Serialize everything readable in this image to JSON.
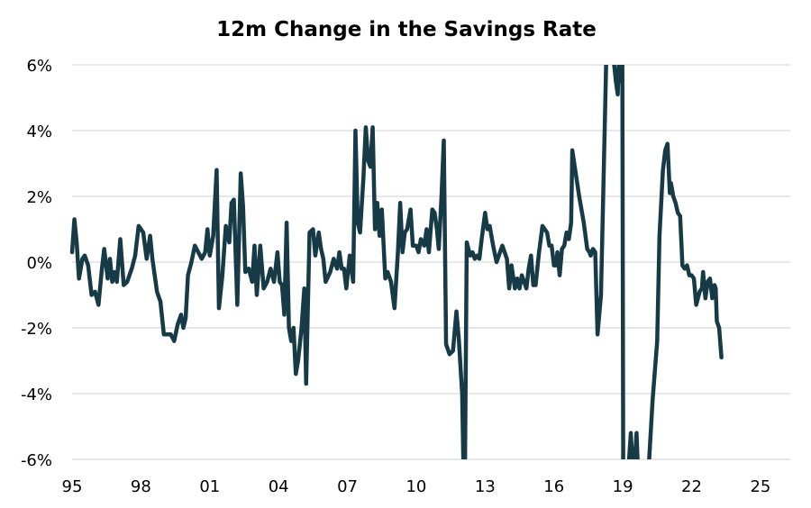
{
  "colors": {
    "line": "#173a47",
    "grid": "#d9d9d9",
    "background": "#ffffff"
  },
  "chart_data": {
    "type": "line",
    "title": "12m Change in the Savings Rate",
    "xlabel": "",
    "ylabel": "",
    "xlim": [
      1995.0,
      2026.3
    ],
    "ylim": [
      -6,
      6
    ],
    "y_tick_values": [
      6,
      4,
      2,
      0,
      -2,
      -4,
      -6
    ],
    "y_tick_labels": [
      "6%",
      "4%",
      "2%",
      "0%",
      "-2%",
      "-4%",
      "-6%"
    ],
    "x_tick_values": [
      1995,
      1998,
      2001,
      2004,
      2007,
      2010,
      2013,
      2016,
      2019,
      2022,
      2025
    ],
    "x_tick_labels": [
      "95",
      "98",
      "01",
      "04",
      "07",
      "10",
      "13",
      "16",
      "19",
      "22",
      "25"
    ],
    "grid": true,
    "legend": "none",
    "series": [
      {
        "color": "#173a47",
        "points": [
          [
            1995.0,
            0.3
          ],
          [
            1995.1,
            1.3
          ],
          [
            1995.2,
            0.6
          ],
          [
            1995.3,
            -0.5
          ],
          [
            1995.45,
            0.1
          ],
          [
            1995.55,
            0.2
          ],
          [
            1995.7,
            -0.1
          ],
          [
            1995.85,
            -1.0
          ],
          [
            1996.0,
            -0.9
          ],
          [
            1996.15,
            -1.3
          ],
          [
            1996.3,
            -0.2
          ],
          [
            1996.4,
            0.4
          ],
          [
            1996.55,
            -0.5
          ],
          [
            1996.65,
            0.1
          ],
          [
            1996.75,
            -0.6
          ],
          [
            1996.85,
            -0.3
          ],
          [
            1996.95,
            -0.6
          ],
          [
            1997.1,
            0.7
          ],
          [
            1997.25,
            -0.7
          ],
          [
            1997.4,
            -0.6
          ],
          [
            1997.6,
            -0.2
          ],
          [
            1997.75,
            0.2
          ],
          [
            1997.9,
            1.1
          ],
          [
            1998.1,
            0.9
          ],
          [
            1998.25,
            0.1
          ],
          [
            1998.4,
            0.8
          ],
          [
            1998.5,
            0.1
          ],
          [
            1998.7,
            -0.9
          ],
          [
            1998.85,
            -1.2
          ],
          [
            1999.0,
            -2.2
          ],
          [
            1999.3,
            -2.2
          ],
          [
            1999.45,
            -2.4
          ],
          [
            1999.6,
            -1.9
          ],
          [
            1999.75,
            -1.6
          ],
          [
            1999.85,
            -2.0
          ],
          [
            1999.95,
            -1.7
          ],
          [
            2000.05,
            -0.4
          ],
          [
            2000.2,
            0.0
          ],
          [
            2000.35,
            0.5
          ],
          [
            2000.5,
            0.3
          ],
          [
            2000.65,
            0.1
          ],
          [
            2000.8,
            0.3
          ],
          [
            2000.9,
            1.0
          ],
          [
            2001.0,
            0.2
          ],
          [
            2001.15,
            0.8
          ],
          [
            2001.3,
            2.8
          ],
          [
            2001.4,
            -1.4
          ],
          [
            2001.55,
            -0.4
          ],
          [
            2001.7,
            1.1
          ],
          [
            2001.85,
            0.6
          ],
          [
            2001.95,
            1.8
          ],
          [
            2002.05,
            1.9
          ],
          [
            2002.2,
            -1.3
          ],
          [
            2002.35,
            2.7
          ],
          [
            2002.45,
            1.7
          ],
          [
            2002.55,
            -0.3
          ],
          [
            2002.7,
            -0.2
          ],
          [
            2002.85,
            -0.6
          ],
          [
            2002.95,
            0.5
          ],
          [
            2003.05,
            -1.0
          ],
          [
            2003.2,
            0.5
          ],
          [
            2003.35,
            -0.8
          ],
          [
            2003.5,
            -0.6
          ],
          [
            2003.65,
            -0.2
          ],
          [
            2003.8,
            -0.6
          ],
          [
            2003.95,
            0.3
          ],
          [
            2004.05,
            -0.6
          ],
          [
            2004.15,
            -0.7
          ],
          [
            2004.25,
            -1.6
          ],
          [
            2004.35,
            1.2
          ],
          [
            2004.45,
            -2.0
          ],
          [
            2004.55,
            -2.4
          ],
          [
            2004.65,
            -2.0
          ],
          [
            2004.75,
            -3.4
          ],
          [
            2004.85,
            -3.0
          ],
          [
            2005.0,
            -2.0
          ],
          [
            2005.12,
            -0.8
          ],
          [
            2005.2,
            -3.7
          ],
          [
            2005.35,
            0.9
          ],
          [
            2005.5,
            1.0
          ],
          [
            2005.6,
            0.2
          ],
          [
            2005.75,
            0.9
          ],
          [
            2005.85,
            0.4
          ],
          [
            2005.95,
            0.1
          ],
          [
            2006.05,
            -0.6
          ],
          [
            2006.25,
            -0.3
          ],
          [
            2006.4,
            0.1
          ],
          [
            2006.55,
            -0.2
          ],
          [
            2006.65,
            0.3
          ],
          [
            2006.75,
            -0.2
          ],
          [
            2006.85,
            -0.2
          ],
          [
            2006.95,
            -0.8
          ],
          [
            2007.1,
            0.2
          ],
          [
            2007.25,
            -0.6
          ],
          [
            2007.35,
            4.0
          ],
          [
            2007.45,
            1.2
          ],
          [
            2007.55,
            0.9
          ],
          [
            2007.7,
            2.6
          ],
          [
            2007.8,
            4.1
          ],
          [
            2007.9,
            3.1
          ],
          [
            2008.0,
            2.9
          ],
          [
            2008.1,
            4.1
          ],
          [
            2008.2,
            1.0
          ],
          [
            2008.3,
            1.8
          ],
          [
            2008.4,
            0.8
          ],
          [
            2008.5,
            1.6
          ],
          [
            2008.65,
            -0.5
          ],
          [
            2008.75,
            -0.3
          ],
          [
            2008.9,
            -0.6
          ],
          [
            2009.05,
            -1.4
          ],
          [
            2009.2,
            0.3
          ],
          [
            2009.3,
            1.8
          ],
          [
            2009.4,
            0.3
          ],
          [
            2009.5,
            0.9
          ],
          [
            2009.6,
            1.0
          ],
          [
            2009.75,
            1.6
          ],
          [
            2009.85,
            0.5
          ],
          [
            2010.0,
            0.5
          ],
          [
            2010.1,
            0.3
          ],
          [
            2010.2,
            0.7
          ],
          [
            2010.35,
            0.5
          ],
          [
            2010.45,
            1.0
          ],
          [
            2010.55,
            0.3
          ],
          [
            2010.7,
            1.6
          ],
          [
            2010.8,
            1.5
          ],
          [
            2010.9,
            1.0
          ],
          [
            2010.98,
            0.4
          ],
          [
            2011.1,
            2.0
          ],
          [
            2011.2,
            3.7
          ],
          [
            2011.3,
            -2.5
          ],
          [
            2011.45,
            -2.8
          ],
          [
            2011.6,
            -2.7
          ],
          [
            2011.75,
            -1.5
          ],
          [
            2011.85,
            -2.3
          ],
          [
            2012.0,
            -4.0
          ],
          [
            2012.05,
            -6.0
          ],
          [
            2012.12,
            -6.5
          ],
          [
            2012.2,
            0.6
          ],
          [
            2012.35,
            0.2
          ],
          [
            2012.45,
            0.3
          ],
          [
            2012.55,
            0.1
          ],
          [
            2012.65,
            0.2
          ],
          [
            2012.75,
            0.1
          ],
          [
            2012.85,
            0.7
          ],
          [
            2013.0,
            1.5
          ],
          [
            2013.1,
            1.0
          ],
          [
            2013.2,
            1.1
          ],
          [
            2013.35,
            0.5
          ],
          [
            2013.5,
            0.0
          ],
          [
            2013.65,
            0.3
          ],
          [
            2013.75,
            0.5
          ],
          [
            2013.85,
            0.3
          ],
          [
            2013.95,
            0.1
          ],
          [
            2014.05,
            -0.8
          ],
          [
            2014.15,
            -0.1
          ],
          [
            2014.3,
            -0.8
          ],
          [
            2014.4,
            -0.5
          ],
          [
            2014.5,
            -0.8
          ],
          [
            2014.6,
            -0.4
          ],
          [
            2014.7,
            -0.6
          ],
          [
            2014.8,
            -0.8
          ],
          [
            2014.9,
            -0.2
          ],
          [
            2015.0,
            0.2
          ],
          [
            2015.1,
            -0.7
          ],
          [
            2015.2,
            -0.7
          ],
          [
            2015.35,
            0.3
          ],
          [
            2015.5,
            1.1
          ],
          [
            2015.6,
            1.0
          ],
          [
            2015.7,
            0.9
          ],
          [
            2015.8,
            0.5
          ],
          [
            2015.9,
            0.5
          ],
          [
            2016.0,
            -0.1
          ],
          [
            2016.1,
            -0.1
          ],
          [
            2016.15,
            0.3
          ],
          [
            2016.25,
            -0.4
          ],
          [
            2016.35,
            0.4
          ],
          [
            2016.45,
            0.5
          ],
          [
            2016.55,
            0.9
          ],
          [
            2016.65,
            0.7
          ],
          [
            2016.75,
            1.2
          ],
          [
            2016.8,
            3.4
          ],
          [
            2016.95,
            2.7
          ],
          [
            2017.1,
            2.0
          ],
          [
            2017.3,
            1.2
          ],
          [
            2017.45,
            0.4
          ],
          [
            2017.55,
            0.3
          ],
          [
            2017.6,
            0.2
          ],
          [
            2017.7,
            0.4
          ],
          [
            2017.8,
            0.3
          ],
          [
            2017.9,
            -2.2
          ],
          [
            2018.05,
            -1.0
          ],
          [
            2018.3,
            6.8
          ],
          [
            2018.4,
            7.2
          ],
          [
            2018.55,
            6.5
          ],
          [
            2018.7,
            5.5
          ],
          [
            2018.78,
            5.1
          ],
          [
            2018.85,
            6.5
          ],
          [
            2018.92,
            5.5
          ],
          [
            2018.98,
            6.5
          ],
          [
            2019.02,
            -6.5
          ],
          [
            2019.1,
            -7.0
          ],
          [
            2019.2,
            -6.8
          ],
          [
            2019.35,
            -5.2
          ],
          [
            2019.45,
            -6.5
          ],
          [
            2019.55,
            -5.8
          ],
          [
            2019.6,
            -5.2
          ],
          [
            2019.7,
            -7.0
          ],
          [
            2019.85,
            -7.5
          ],
          [
            2020.0,
            -6.8
          ],
          [
            2020.15,
            -6.0
          ],
          [
            2020.3,
            -4.2
          ],
          [
            2020.5,
            -2.4
          ],
          [
            2020.6,
            0.8
          ],
          [
            2020.75,
            2.8
          ],
          [
            2020.85,
            3.4
          ],
          [
            2020.95,
            3.6
          ],
          [
            2021.05,
            2.1
          ],
          [
            2021.1,
            2.4
          ],
          [
            2021.2,
            2.0
          ],
          [
            2021.3,
            1.8
          ],
          [
            2021.4,
            1.5
          ],
          [
            2021.5,
            1.4
          ],
          [
            2021.6,
            -0.1
          ],
          [
            2021.7,
            -0.2
          ],
          [
            2021.8,
            -0.1
          ],
          [
            2021.9,
            -0.4
          ],
          [
            2022.0,
            -0.4
          ],
          [
            2022.1,
            -0.5
          ],
          [
            2022.2,
            -1.3
          ],
          [
            2022.35,
            -0.9
          ],
          [
            2022.45,
            -0.8
          ],
          [
            2022.5,
            -0.3
          ],
          [
            2022.6,
            -1.1
          ],
          [
            2022.7,
            -0.6
          ],
          [
            2022.8,
            -0.5
          ],
          [
            2022.9,
            -1.1
          ],
          [
            2023.0,
            -0.7
          ],
          [
            2023.05,
            -0.8
          ],
          [
            2023.1,
            -1.8
          ],
          [
            2023.2,
            -2.0
          ],
          [
            2023.3,
            -2.9
          ]
        ]
      }
    ]
  }
}
